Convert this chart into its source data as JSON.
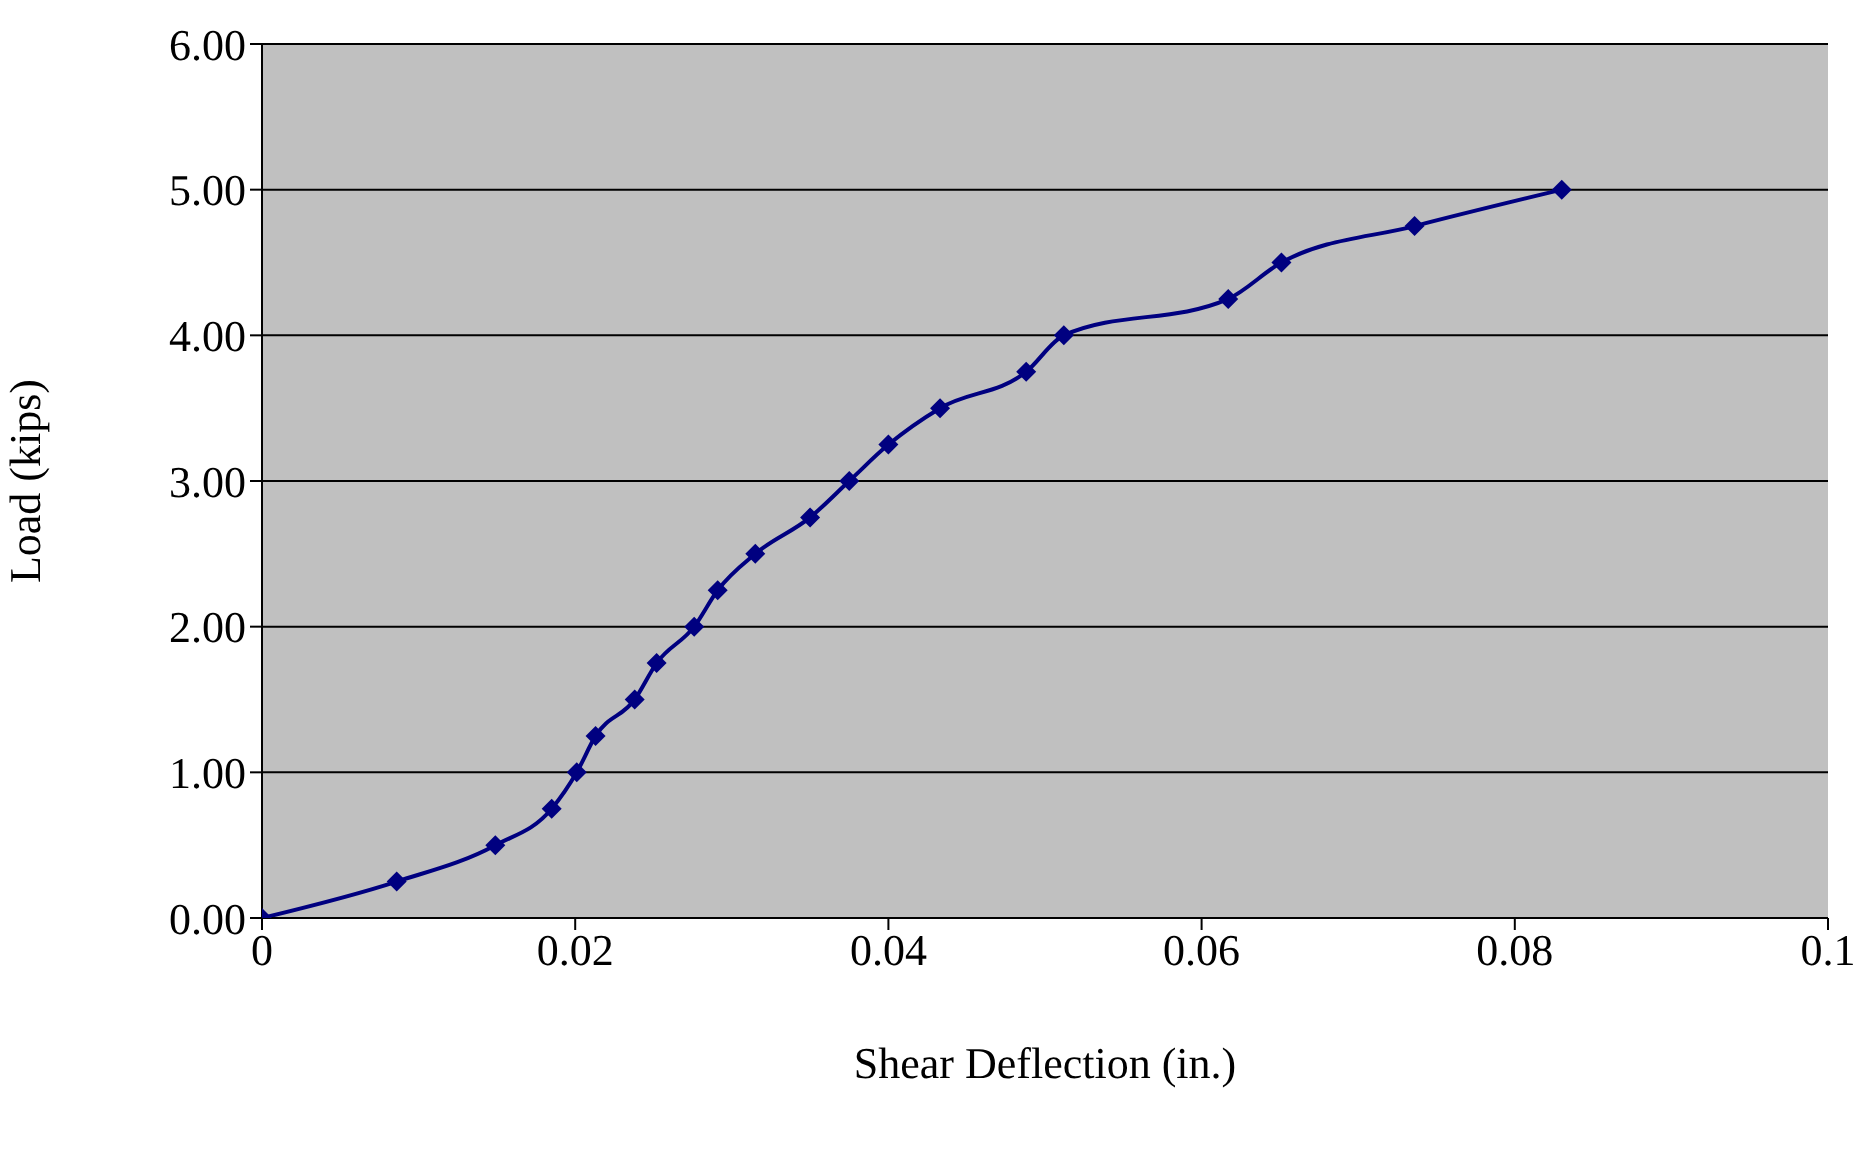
{
  "chart_data": {
    "type": "line",
    "xlabel": "Shear Deflection (in.)",
    "ylabel": "Load (kips)",
    "x": [
      0,
      0.0086,
      0.0149,
      0.0185,
      0.0201,
      0.0213,
      0.0238,
      0.0252,
      0.0276,
      0.0291,
      0.0315,
      0.035,
      0.0375,
      0.04,
      0.0433,
      0.0488,
      0.0512,
      0.0617,
      0.0651,
      0.0736,
      0.083
    ],
    "series": [
      {
        "color": "#000080",
        "values": [
          0,
          0.25,
          0.5,
          0.75,
          1.0,
          1.25,
          1.5,
          1.75,
          2.0,
          2.25,
          2.5,
          2.75,
          3.0,
          3.25,
          3.5,
          3.75,
          4.0,
          4.25,
          4.5,
          4.75,
          5.0
        ]
      }
    ],
    "xlim": [
      0,
      0.1
    ],
    "xticks": [
      0,
      0.02,
      0.04,
      0.06,
      0.08,
      0.1
    ],
    "ylim": [
      0,
      6
    ],
    "yticks": [
      {
        "value": 0,
        "label": "0.00"
      },
      {
        "value": 1,
        "label": "1.00"
      },
      {
        "value": 2,
        "label": "2.00"
      },
      {
        "value": 3,
        "label": "3.00"
      },
      {
        "value": 4,
        "label": "4.00"
      },
      {
        "value": 5,
        "label": "5.00"
      },
      {
        "value": 6,
        "label": "6.00"
      }
    ],
    "grid": "y",
    "marker": "diamond",
    "line_style": "solid",
    "legend": false
  }
}
